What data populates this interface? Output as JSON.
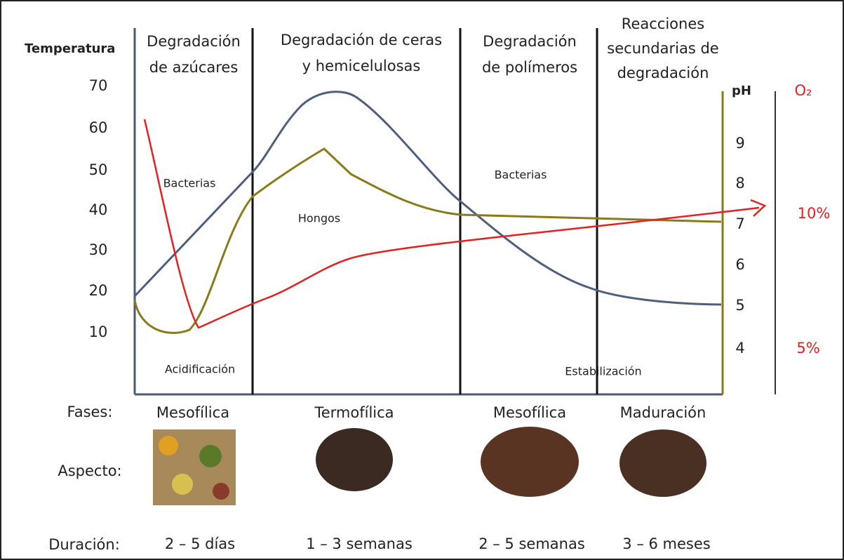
{
  "temperature_axis": {
    "label": "Temperatura",
    "ticks": [
      "70",
      "60",
      "50",
      "40",
      "30",
      "20",
      "10"
    ]
  },
  "ph_axis": {
    "label": "pH",
    "ticks": [
      "9",
      "8",
      "7",
      "6",
      "5",
      "4"
    ]
  },
  "o2_axis": {
    "label": "O₂",
    "ticks": [
      "10%",
      "5%"
    ]
  },
  "stages": [
    {
      "lines": [
        "Degradación",
        "de azúcares"
      ]
    },
    {
      "lines": [
        "Degradación de ceras",
        "y hemicelulosas"
      ]
    },
    {
      "lines": [
        "Degradación",
        "de polímeros"
      ]
    },
    {
      "lines": [
        "Reacciones",
        "secundarias de",
        "degradación"
      ]
    }
  ],
  "annotations": [
    "Bacterias",
    "Hongos",
    "Bacterias",
    "Acidificación",
    "Estabilización"
  ],
  "phases": {
    "label": "Fases:",
    "values": [
      "Mesofílica",
      "Termofílica",
      "Mesofílica",
      "Maduración"
    ]
  },
  "appearance": {
    "label": "Aspecto:"
  },
  "duration": {
    "label": "Duración:",
    "values": [
      "2 – 5 días",
      "1 – 3 semanas",
      "2 – 5 semanas",
      "3 – 6 meses"
    ]
  }
}
